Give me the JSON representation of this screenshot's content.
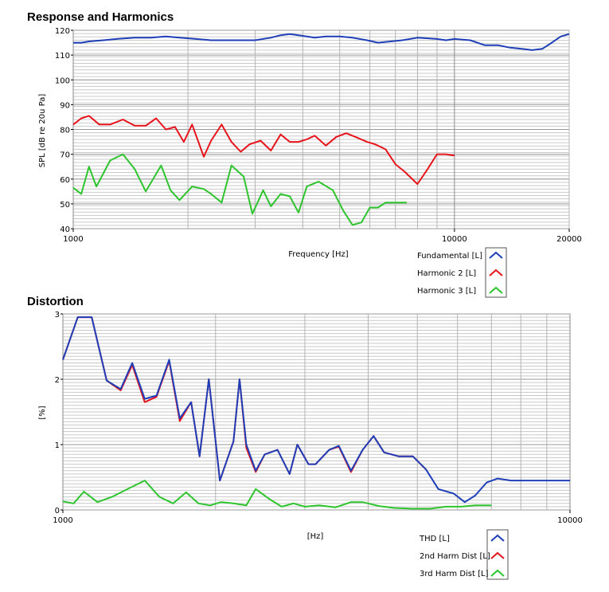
{
  "chart_data": [
    {
      "type": "line",
      "title": "Response and Harmonics",
      "xlabel": "Frequency [Hz]",
      "ylabel": "SPL [dB re 20u Pa]",
      "xscale": "log",
      "xlim": [
        1000,
        20000
      ],
      "ylim": [
        40,
        120
      ],
      "xticks": [
        1000,
        10000,
        20000
      ],
      "yticks": [
        40,
        50,
        60,
        70,
        80,
        90,
        100,
        110,
        120
      ],
      "grid": true,
      "legend": "bottom-right",
      "series": [
        {
          "name": "Fundamental [L]",
          "color": "#1f3fb8",
          "x": [
            1000,
            1050,
            1100,
            1200,
            1300,
            1450,
            1600,
            1750,
            1900,
            2100,
            2300,
            2500,
            2700,
            3000,
            3300,
            3500,
            3700,
            3900,
            4100,
            4300,
            4600,
            5000,
            5400,
            5900,
            6300,
            6800,
            7300,
            8000,
            9000,
            9500,
            10000,
            11000,
            12000,
            13000,
            14000,
            15000,
            16000,
            17000,
            18000,
            19000,
            20000
          ],
          "values": [
            115,
            115,
            115.5,
            116,
            116.5,
            117,
            117,
            117.5,
            117,
            116.5,
            116,
            116,
            116,
            116,
            117,
            118,
            118.5,
            118,
            117.5,
            117,
            117.5,
            117.5,
            117,
            116,
            115,
            115.5,
            116,
            117,
            116.5,
            116,
            116.5,
            116,
            114,
            114,
            113,
            112.5,
            112,
            112.5,
            115,
            117.5,
            118.5
          ]
        },
        {
          "name": "Harmonic 2 [L]",
          "color": "#e8141c",
          "x": [
            1000,
            1050,
            1100,
            1170,
            1250,
            1350,
            1450,
            1550,
            1650,
            1750,
            1850,
            1950,
            2050,
            2200,
            2300,
            2450,
            2600,
            2750,
            2900,
            3100,
            3300,
            3500,
            3700,
            3900,
            4100,
            4300,
            4600,
            4900,
            5200,
            5500,
            5900,
            6200,
            6600,
            7000,
            7400,
            8000,
            8500,
            9000,
            9500,
            10000
          ],
          "values": [
            82,
            84.5,
            85.5,
            82,
            82,
            84,
            81.5,
            81.5,
            84.5,
            80,
            81,
            75,
            82,
            69,
            75.5,
            82,
            75,
            71,
            74,
            75.5,
            71.5,
            78,
            75,
            75,
            76,
            77.5,
            73.5,
            77,
            78.5,
            77,
            75,
            74,
            72,
            66,
            63,
            58,
            64,
            70,
            70,
            69.5
          ]
        },
        {
          "name": "Harmonic 3 [L]",
          "color": "#2ec42e",
          "x": [
            1000,
            1050,
            1100,
            1150,
            1250,
            1350,
            1450,
            1550,
            1700,
            1800,
            1900,
            2050,
            2200,
            2300,
            2450,
            2600,
            2800,
            2950,
            3150,
            3300,
            3500,
            3700,
            3900,
            4100,
            4400,
            4800,
            5100,
            5400,
            5700,
            6000,
            6300,
            6600,
            6900,
            7200,
            7500
          ],
          "values": [
            56.5,
            54,
            65,
            57,
            67.5,
            70,
            64,
            55,
            65.5,
            55.5,
            51.5,
            57,
            56,
            54,
            50.5,
            65.5,
            61,
            46,
            55.5,
            49,
            54,
            53,
            46.5,
            57,
            59,
            55.5,
            47.5,
            41.5,
            42.5,
            48.5,
            48.5,
            50.5,
            50.5,
            50.5,
            50.5
          ]
        }
      ]
    },
    {
      "type": "line",
      "title": "Distortion",
      "xlabel": "[Hz]",
      "ylabel": "[%]",
      "xscale": "log",
      "xlim": [
        1000,
        10000
      ],
      "ylim": [
        0,
        3
      ],
      "xticks": [
        1000,
        10000
      ],
      "yticks": [
        0,
        1,
        2,
        3
      ],
      "grid": true,
      "legend": "bottom-right",
      "series": [
        {
          "name": "THD [L]",
          "color": "#1f3fb8",
          "x": [
            1000,
            1070,
            1140,
            1220,
            1300,
            1370,
            1450,
            1530,
            1620,
            1700,
            1790,
            1860,
            1940,
            2040,
            2170,
            2230,
            2300,
            2400,
            2500,
            2650,
            2800,
            2900,
            3050,
            3150,
            3350,
            3500,
            3700,
            3900,
            4100,
            4300,
            4600,
            4900,
            5200,
            5500,
            5900,
            6200,
            6500,
            6850,
            7200,
            7650,
            8200,
            8700,
            9200,
            9600,
            10000
          ],
          "values": [
            2.3,
            2.95,
            2.95,
            1.98,
            1.85,
            2.25,
            1.7,
            1.75,
            2.3,
            1.4,
            1.65,
            0.82,
            2.0,
            0.45,
            1.05,
            2.0,
            1.0,
            0.6,
            0.85,
            0.92,
            0.55,
            1.0,
            0.7,
            0.7,
            0.92,
            0.98,
            0.6,
            0.92,
            1.13,
            0.88,
            0.82,
            0.82,
            0.62,
            0.32,
            0.25,
            0.12,
            0.22,
            0.42,
            0.48,
            0.45,
            0.45,
            0.45,
            0.45,
            0.45,
            0.45
          ]
        },
        {
          "name": "2nd Harm Dist [L]",
          "color": "#e8141c",
          "x": [
            1000,
            1070,
            1140,
            1220,
            1300,
            1370,
            1450,
            1530,
            1620,
            1700,
            1790,
            1860,
            1940,
            2040,
            2170,
            2230,
            2300,
            2400,
            2500,
            2650,
            2800,
            2900,
            3050,
            3150,
            3350,
            3500,
            3700,
            3900,
            4100,
            4300,
            4600,
            4900,
            5200
          ],
          "values": [
            2.3,
            2.95,
            2.95,
            1.98,
            1.83,
            2.22,
            1.65,
            1.73,
            2.28,
            1.36,
            1.65,
            0.82,
            2.0,
            0.45,
            1.05,
            2.0,
            0.95,
            0.58,
            0.85,
            0.92,
            0.55,
            1.0,
            0.7,
            0.7,
            0.92,
            0.97,
            0.58,
            0.92,
            1.13,
            0.88,
            0.82,
            0.82,
            0.62
          ]
        },
        {
          "name": "3rd Harm Dist [L]",
          "color": "#2ec42e",
          "x": [
            1000,
            1050,
            1100,
            1170,
            1250,
            1350,
            1450,
            1550,
            1650,
            1750,
            1850,
            1950,
            2050,
            2170,
            2300,
            2400,
            2550,
            2700,
            2850,
            3000,
            3200,
            3450,
            3700,
            3900,
            4200,
            4500,
            4900,
            5300,
            5700,
            6100,
            6500,
            7000
          ],
          "values": [
            0.13,
            0.1,
            0.28,
            0.12,
            0.2,
            0.33,
            0.45,
            0.2,
            0.1,
            0.27,
            0.1,
            0.07,
            0.12,
            0.1,
            0.07,
            0.32,
            0.17,
            0.05,
            0.1,
            0.05,
            0.07,
            0.04,
            0.12,
            0.12,
            0.06,
            0.03,
            0.02,
            0.02,
            0.05,
            0.05,
            0.07,
            0.07
          ]
        }
      ]
    }
  ]
}
